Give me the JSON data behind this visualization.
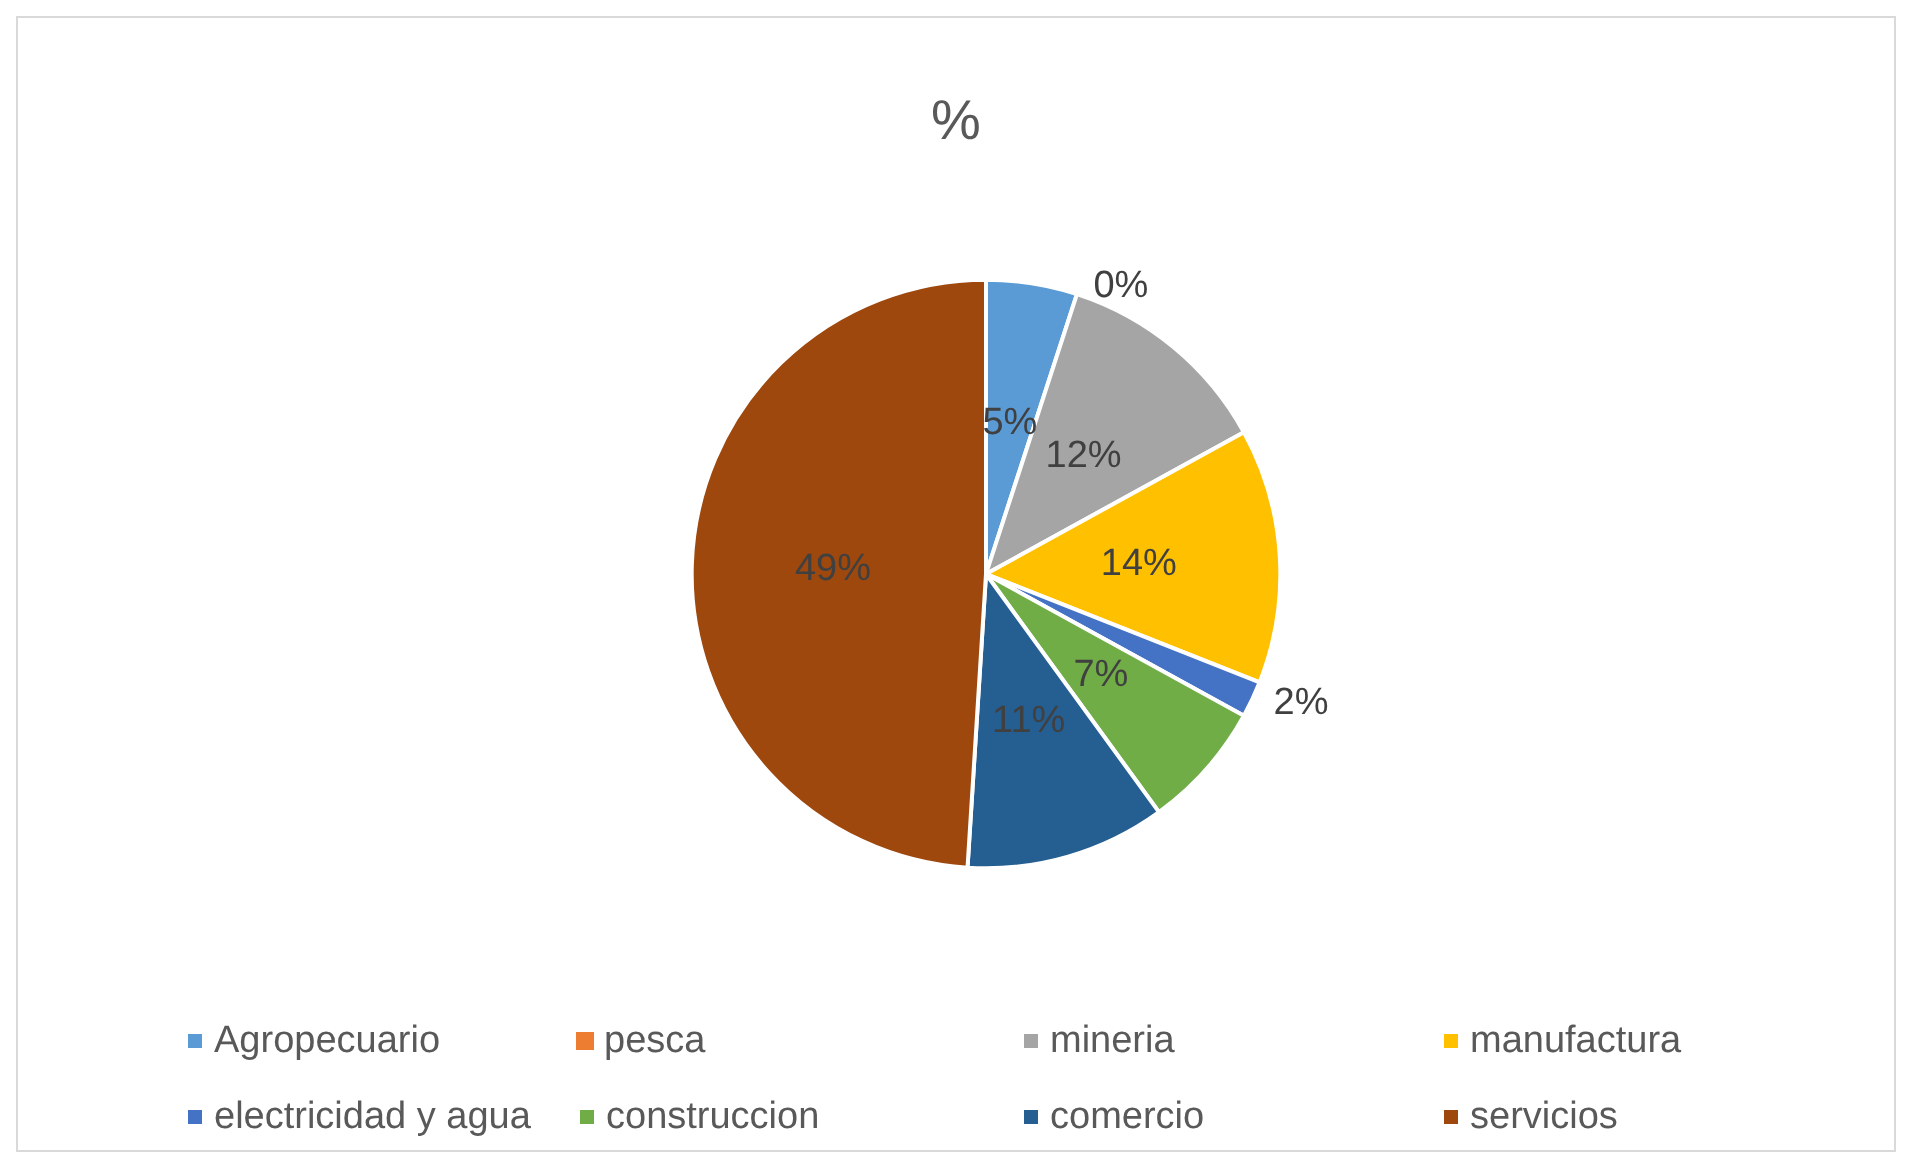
{
  "chart_data": {
    "type": "pie",
    "title": "%",
    "categories": [
      "Agropecuario",
      "pesca",
      "mineria",
      "manufactura",
      "electricidad y agua",
      "construccion",
      "comercio",
      "servicios"
    ],
    "values": [
      5,
      0,
      12,
      14,
      2,
      7,
      11,
      49
    ],
    "value_labels": [
      "5%",
      "0%",
      "12%",
      "14%",
      "2%",
      "7%",
      "11%",
      "49%"
    ],
    "colors": [
      "#5b9bd5",
      "#ed7d31",
      "#a5a5a5",
      "#ffc000",
      "#4472c4",
      "#70ad47",
      "#255e91",
      "#9e480e"
    ],
    "legend": "bottom"
  }
}
